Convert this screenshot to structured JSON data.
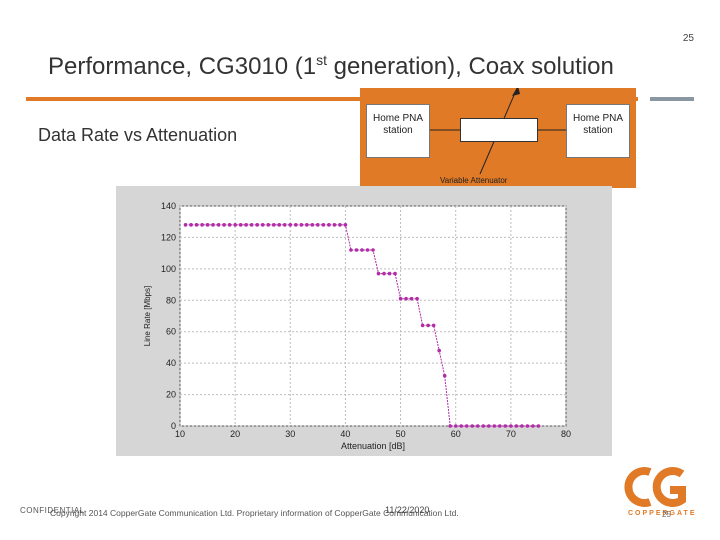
{
  "slide": {
    "page_number": "25",
    "title_main": "Performance, CG3010 (1",
    "title_sup": "st",
    "title_rest": " generation), Coax solution",
    "subtitle": "Data Rate vs Attenuation",
    "footer_confidential": "CONFIDENTIAL",
    "footer_text": "Copyright 2014 CopperGate Communication Ltd. Proprietary information of CopperGate Communication Ltd.",
    "footer_date": "11/22/2020",
    "footer_page": "25",
    "logo_word": "COPPERGATE"
  },
  "diagram": {
    "station_left": [
      "Home PNA",
      "station"
    ],
    "station_right": [
      "Home PNA",
      "station"
    ],
    "attenuator_label": "Variable Attenuator"
  },
  "colors": {
    "accent": "#e07a27",
    "series": "#b12ca7",
    "panel": "#d6d6d6"
  },
  "chart_data": {
    "type": "line",
    "xlabel": "Attenuation [dB]",
    "ylabel": "Line Rate [Mbps]",
    "xlim": [
      10,
      80
    ],
    "ylim": [
      0,
      140
    ],
    "xticks": [
      10,
      20,
      30,
      40,
      50,
      60,
      70,
      80
    ],
    "yticks": [
      0,
      20,
      40,
      60,
      80,
      100,
      120,
      140
    ],
    "grid": true,
    "series": [
      {
        "x": [
          11,
          12,
          13,
          14,
          15,
          16,
          17,
          18,
          19,
          20,
          21,
          22,
          23,
          24,
          25,
          26,
          27,
          28,
          29,
          30,
          31,
          32,
          33,
          34,
          35,
          36,
          37,
          38,
          39,
          40,
          41,
          42,
          43,
          44,
          45,
          46,
          47,
          48,
          49,
          50,
          51,
          52,
          53,
          54,
          55,
          56,
          57,
          58,
          59,
          60,
          61,
          62,
          63,
          64,
          65,
          66,
          67,
          68,
          69,
          70,
          71,
          72,
          73,
          74,
          75
        ],
        "y": [
          128,
          128,
          128,
          128,
          128,
          128,
          128,
          128,
          128,
          128,
          128,
          128,
          128,
          128,
          128,
          128,
          128,
          128,
          128,
          128,
          128,
          128,
          128,
          128,
          128,
          128,
          128,
          128,
          128,
          128,
          112,
          112,
          112,
          112,
          112,
          97,
          97,
          97,
          97,
          81,
          81,
          81,
          81,
          64,
          64,
          64,
          48,
          32,
          0,
          0,
          0,
          0,
          0,
          0,
          0,
          0,
          0,
          0,
          0,
          0,
          0,
          0,
          0,
          0,
          0
        ]
      }
    ]
  }
}
